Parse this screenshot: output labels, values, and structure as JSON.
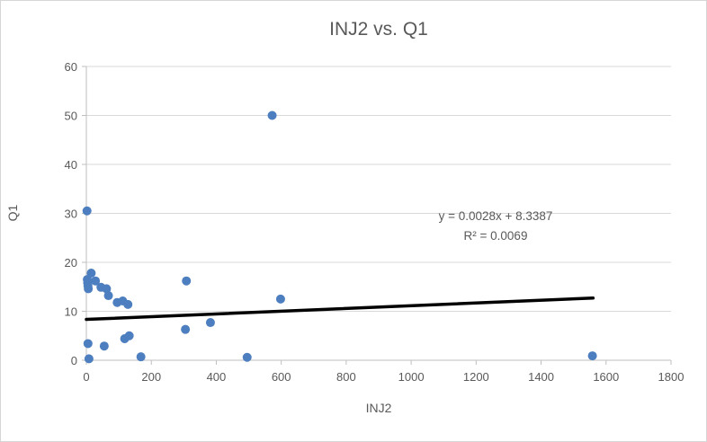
{
  "chart": {
    "title": "INJ2 vs. Q1",
    "xlabel": "INJ2",
    "ylabel": "Q1",
    "annotation_line1": "y = 0.0028x + 8.3387",
    "annotation_line2": "R² = 0.0069"
  },
  "chart_data": {
    "type": "scatter",
    "title": "INJ2 vs. Q1",
    "xlabel": "INJ2",
    "ylabel": "Q1",
    "xlim": [
      0,
      1800
    ],
    "ylim": [
      0,
      60
    ],
    "xticks": [
      0,
      200,
      400,
      600,
      800,
      1000,
      1200,
      1400,
      1600,
      1800
    ],
    "yticks": [
      0,
      10,
      20,
      30,
      40,
      50,
      60
    ],
    "grid": "horizontal",
    "legend": "none",
    "marker_color": "#4d7ebf",
    "gridline_color": "#d9d9d9",
    "axis_color": "#bfbfbf",
    "text_color": "#595959",
    "points": [
      [
        2,
        30.5
      ],
      [
        3,
        16.5
      ],
      [
        4,
        15.8
      ],
      [
        5,
        15.2
      ],
      [
        6,
        14.6
      ],
      [
        15,
        17.8
      ],
      [
        28,
        16.2
      ],
      [
        45,
        14.9
      ],
      [
        62,
        14.6
      ],
      [
        68,
        13.2
      ],
      [
        95,
        11.8
      ],
      [
        112,
        12.1
      ],
      [
        128,
        11.4
      ],
      [
        5,
        3.4
      ],
      [
        8,
        0.3
      ],
      [
        55,
        2.9
      ],
      [
        118,
        4.4
      ],
      [
        132,
        5.0
      ],
      [
        168,
        0.7
      ],
      [
        305,
        6.3
      ],
      [
        308,
        16.2
      ],
      [
        382,
        7.7
      ],
      [
        495,
        0.6
      ],
      [
        572,
        50.0
      ],
      [
        598,
        12.5
      ],
      [
        1558,
        0.9
      ]
    ],
    "trendline": {
      "slope": 0.0028,
      "intercept": 8.3387,
      "x_start": 0,
      "x_end": 1560,
      "color": "#000000",
      "equation": "y = 0.0028x + 8.3387",
      "r_squared": "R² = 0.0069"
    }
  }
}
